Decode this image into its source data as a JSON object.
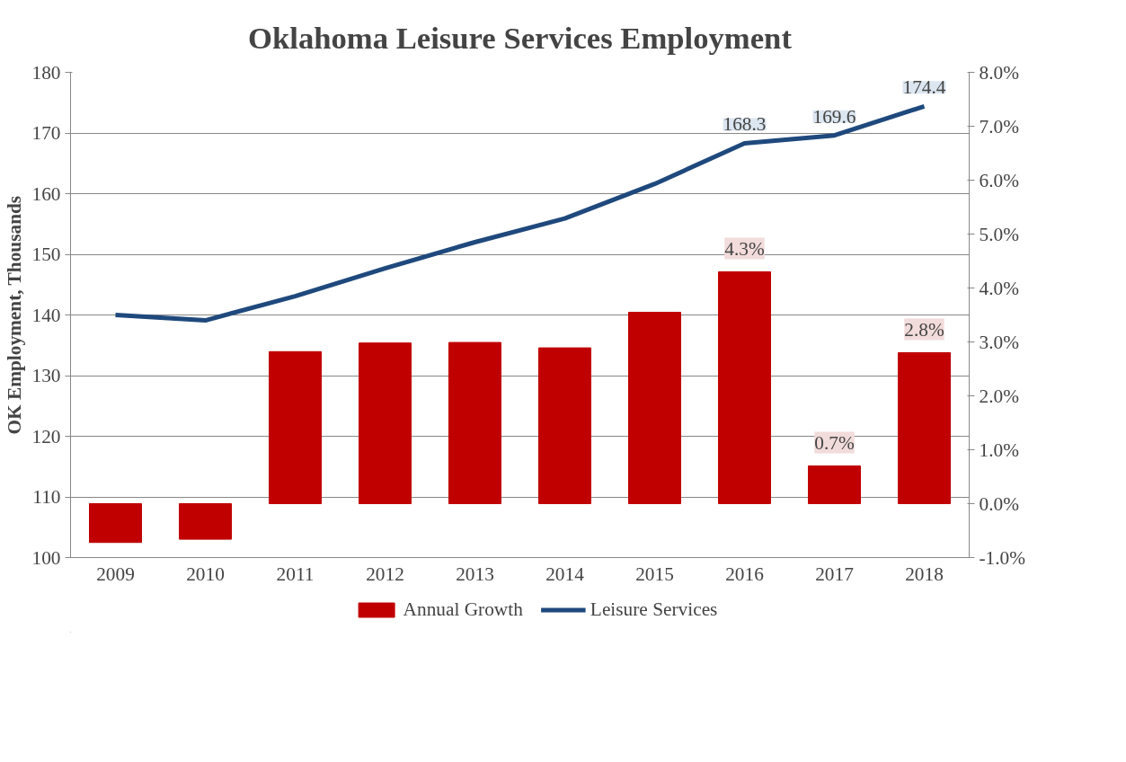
{
  "chart_data": {
    "type": "bar",
    "title": "Oklahoma Leisure Services Employment",
    "ylabel": "OK Employment, Thousands",
    "categories": [
      "2009",
      "2010",
      "2011",
      "2012",
      "2013",
      "2014",
      "2015",
      "2016",
      "2017",
      "2018"
    ],
    "series": [
      {
        "name": "Annual Growth",
        "axis": "y2",
        "color": "#c00000",
        "values": [
          -0.72,
          -0.66,
          2.82,
          2.98,
          2.99,
          2.89,
          3.55,
          4.3,
          0.7,
          2.8
        ],
        "value_labels": [
          null,
          null,
          null,
          null,
          null,
          null,
          null,
          "4.3%",
          "0.7%",
          "2.8%"
        ]
      },
      {
        "name": "Leisure Services",
        "type": "line",
        "color": "#1f497d",
        "values": [
          140.0,
          139.1,
          143.1,
          147.7,
          152.0,
          155.9,
          161.6,
          168.3,
          169.6,
          174.4
        ],
        "value_labels": [
          null,
          null,
          null,
          null,
          null,
          null,
          null,
          "168.3",
          "169.6",
          "174.4"
        ]
      }
    ],
    "ylim": [
      100,
      180
    ],
    "yticks": [
      100,
      110,
      120,
      130,
      140,
      150,
      160,
      170,
      180
    ],
    "y2lim": [
      -1,
      8
    ],
    "y2ticks": [
      {
        "value": -1,
        "label": "-1.0%"
      },
      {
        "value": 0,
        "label": "0.0%"
      },
      {
        "value": 1,
        "label": "1.0%"
      },
      {
        "value": 2,
        "label": "2.0%"
      },
      {
        "value": 3,
        "label": "3.0%"
      },
      {
        "value": 4,
        "label": "4.0%"
      },
      {
        "value": 5,
        "label": "5.0%"
      },
      {
        "value": 6,
        "label": "6.0%"
      },
      {
        "value": 7,
        "label": "7.0%"
      },
      {
        "value": 8,
        "label": "8.0%"
      }
    ],
    "grid": "y",
    "legend": "bottom"
  }
}
